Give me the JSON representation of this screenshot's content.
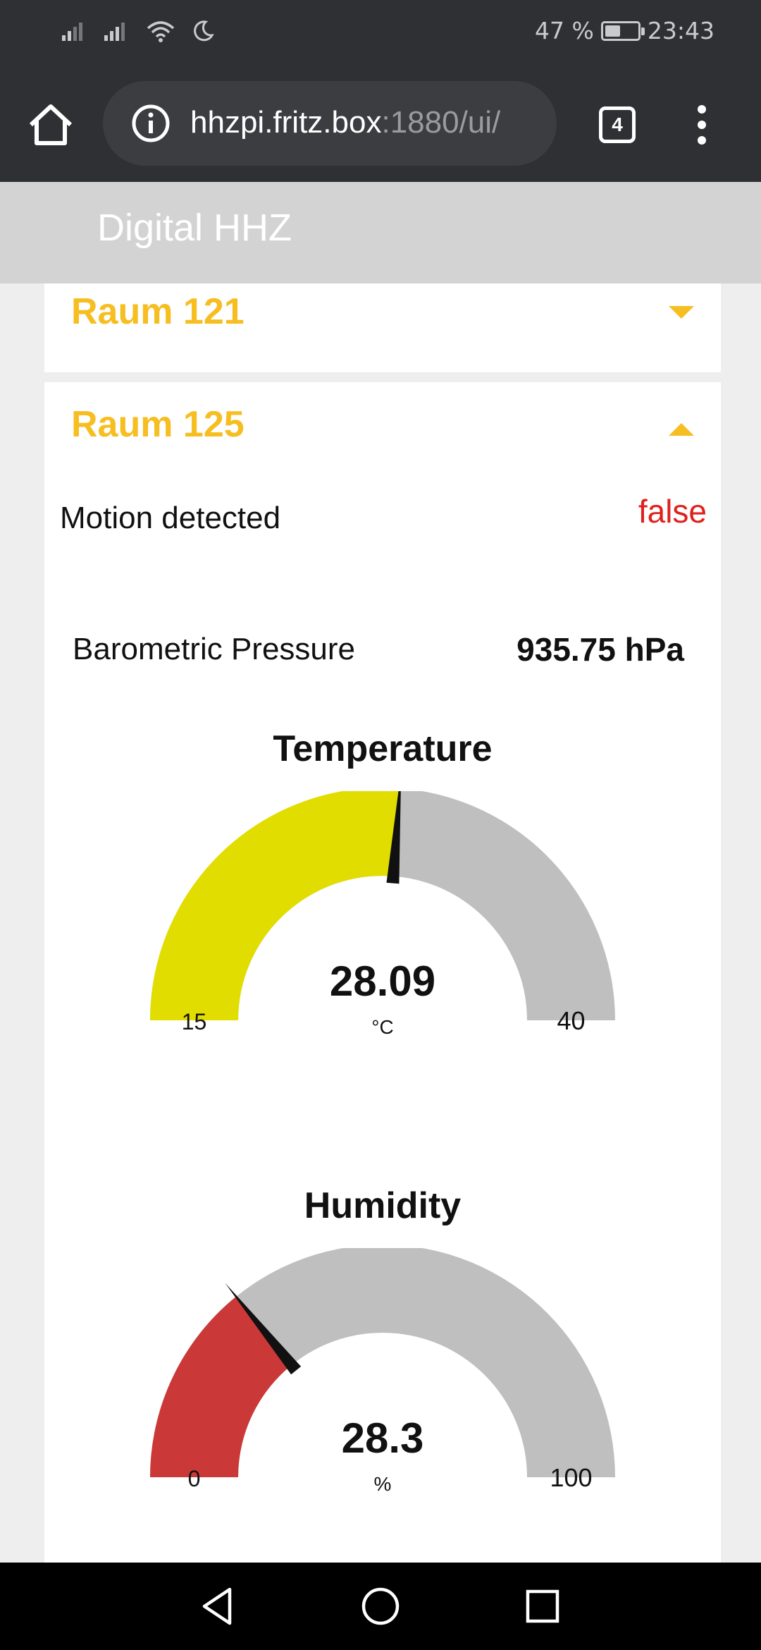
{
  "status_bar": {
    "battery_text": "47 %",
    "battery_level": 0.47,
    "time": "23:43",
    "icons": [
      "signal-icon",
      "signal-icon",
      "wifi-icon",
      "moon-icon",
      "battery-icon"
    ]
  },
  "browser": {
    "url_host": "hhzpi.fritz.box",
    "url_rest": ":1880/ui/",
    "tab_count": "4"
  },
  "dashboard": {
    "title": "Digital HHZ"
  },
  "groups": [
    {
      "title": "Raum 121",
      "expanded": false
    },
    {
      "title": "Raum 125",
      "expanded": true,
      "motion": {
        "label": "Motion detected",
        "value": "false"
      },
      "pressure": {
        "label": "Barometric Pressure",
        "value": "935.75 hPa"
      },
      "temperature": {
        "title": "Temperature",
        "value": 28.09,
        "value_text": "28.09",
        "unit": "°C",
        "min": 15,
        "max": 40,
        "min_text": "15",
        "max_text": "40",
        "color": "#e2dd00"
      },
      "humidity": {
        "title": "Humidity",
        "value": 28.3,
        "value_text": "28.3",
        "unit": "%",
        "min": 0,
        "max": 100,
        "min_text": "0",
        "max_text": "100",
        "color": "#ca3838"
      }
    }
  ],
  "colors": {
    "accent": "#f6be20",
    "gauge_track": "#bfbfbf",
    "needle": "#111111",
    "alert": "#e0201c"
  }
}
